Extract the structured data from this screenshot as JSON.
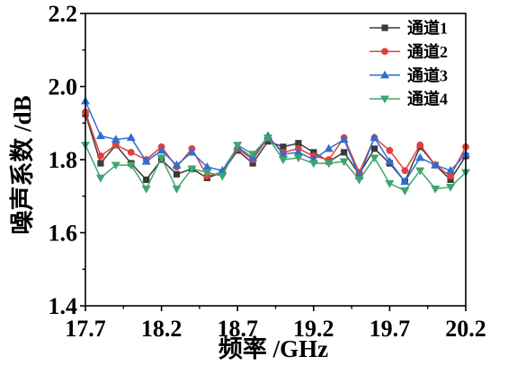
{
  "chart_data": {
    "type": "line",
    "xlabel": "频率 /GHz",
    "ylabel": "噪声系数 /dB",
    "xlim": [
      17.7,
      20.2
    ],
    "ylim": [
      1.4,
      2.2
    ],
    "xticks": [
      "17.7",
      "18.2",
      "18.7",
      "19.2",
      "19.7",
      "20.2"
    ],
    "yticks": [
      "1.4",
      "1.6",
      "1.8",
      "2.0",
      "2.2"
    ],
    "grid": false,
    "legend": "top-right",
    "x": [
      17.7,
      17.8,
      17.9,
      18.0,
      18.1,
      18.2,
      18.3,
      18.4,
      18.5,
      18.6,
      18.7,
      18.8,
      18.9,
      19.0,
      19.1,
      19.2,
      19.3,
      19.4,
      19.5,
      19.6,
      19.7,
      19.8,
      19.9,
      20.0,
      20.1,
      20.2
    ],
    "series": [
      {
        "name": "通道1",
        "color": "#3a3a3a",
        "marker": "square",
        "values": [
          1.925,
          1.79,
          1.84,
          1.79,
          1.745,
          1.8,
          1.76,
          1.775,
          1.75,
          1.765,
          1.825,
          1.79,
          1.85,
          1.835,
          1.845,
          1.82,
          1.795,
          1.82,
          1.76,
          1.83,
          1.79,
          1.74,
          1.835,
          1.785,
          1.745,
          1.81
        ]
      },
      {
        "name": "通道2",
        "color": "#e0403c",
        "marker": "circle",
        "values": [
          1.93,
          1.81,
          1.84,
          1.82,
          1.8,
          1.835,
          1.78,
          1.83,
          1.755,
          1.765,
          1.83,
          1.8,
          1.86,
          1.82,
          1.83,
          1.81,
          1.8,
          1.86,
          1.765,
          1.86,
          1.825,
          1.77,
          1.84,
          1.785,
          1.755,
          1.835
        ]
      },
      {
        "name": "通道3",
        "color": "#2f6fd0",
        "marker": "triangle-up",
        "values": [
          1.96,
          1.865,
          1.855,
          1.86,
          1.795,
          1.825,
          1.785,
          1.82,
          1.78,
          1.77,
          1.835,
          1.805,
          1.865,
          1.815,
          1.82,
          1.8,
          1.83,
          1.855,
          1.755,
          1.86,
          1.795,
          1.74,
          1.805,
          1.785,
          1.77,
          1.815
        ]
      },
      {
        "name": "通道4",
        "color": "#3fa56e",
        "marker": "triangle-down",
        "values": [
          1.84,
          1.75,
          1.785,
          1.785,
          1.72,
          1.805,
          1.72,
          1.775,
          1.765,
          1.755,
          1.84,
          1.815,
          1.86,
          1.8,
          1.805,
          1.79,
          1.79,
          1.795,
          1.745,
          1.805,
          1.735,
          1.715,
          1.77,
          1.72,
          1.725,
          1.765
        ]
      }
    ]
  }
}
